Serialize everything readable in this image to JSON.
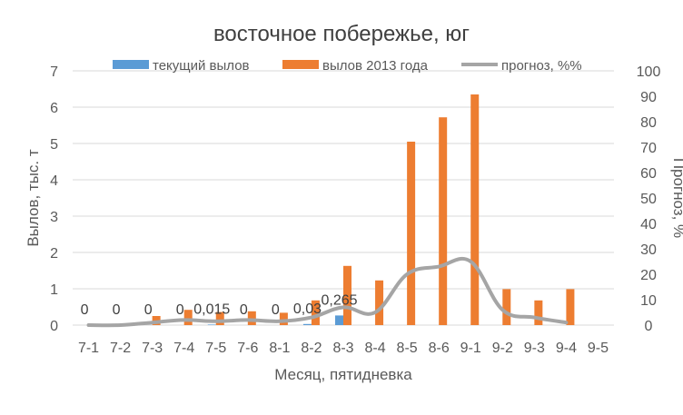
{
  "chart_data": {
    "type": "bar",
    "title": "восточное побережье, юг",
    "xlabel": "Месяц, пятидневка",
    "ylabel": "Вылов, тыс. т",
    "y2label": "Прогноз, %",
    "ylim": [
      0,
      7
    ],
    "y2lim": [
      0,
      100
    ],
    "yticks": [
      "0",
      "1",
      "2",
      "3",
      "4",
      "5",
      "6",
      "7"
    ],
    "y2ticks": [
      "0",
      "10",
      "20",
      "30",
      "40",
      "50",
      "60",
      "70",
      "80",
      "90",
      "100"
    ],
    "categories": [
      "7-1",
      "7-2",
      "7-3",
      "7-4",
      "7-5",
      "7-6",
      "8-1",
      "8-2",
      "8-3",
      "8-4",
      "8-5",
      "8-6",
      "9-1",
      "9-2",
      "9-3",
      "9-4",
      "9-5"
    ],
    "grid": true,
    "legend_position": "top",
    "series": [
      {
        "name": "текущий вылов",
        "kind": "bar",
        "axis": "left",
        "color": "#5b9bd5",
        "values": [
          0,
          0,
          0,
          0,
          0.015,
          0,
          0,
          0.03,
          0.265,
          null,
          null,
          null,
          null,
          null,
          null,
          null,
          null
        ],
        "labels": [
          "0",
          "0",
          "0",
          "0",
          "0,015",
          "0",
          "0",
          "0,03",
          "0,265",
          "",
          "",
          "",
          "",
          "",
          "",
          "",
          ""
        ]
      },
      {
        "name": "вылов 2013 года",
        "kind": "bar",
        "axis": "left",
        "color": "#ed7d31",
        "values": [
          0,
          0,
          0.25,
          0.42,
          0.36,
          0.38,
          0.34,
          0.68,
          1.63,
          1.23,
          5.05,
          5.72,
          6.35,
          0.99,
          0.68,
          0.99,
          0
        ]
      },
      {
        "name": "прогноз, %%",
        "kind": "line",
        "axis": "right",
        "color": "#a5a5a5",
        "values": [
          0,
          0,
          1,
          2,
          1.5,
          2,
          1.5,
          3,
          7,
          5,
          20,
          23,
          25,
          6,
          3,
          1,
          null
        ]
      }
    ]
  }
}
